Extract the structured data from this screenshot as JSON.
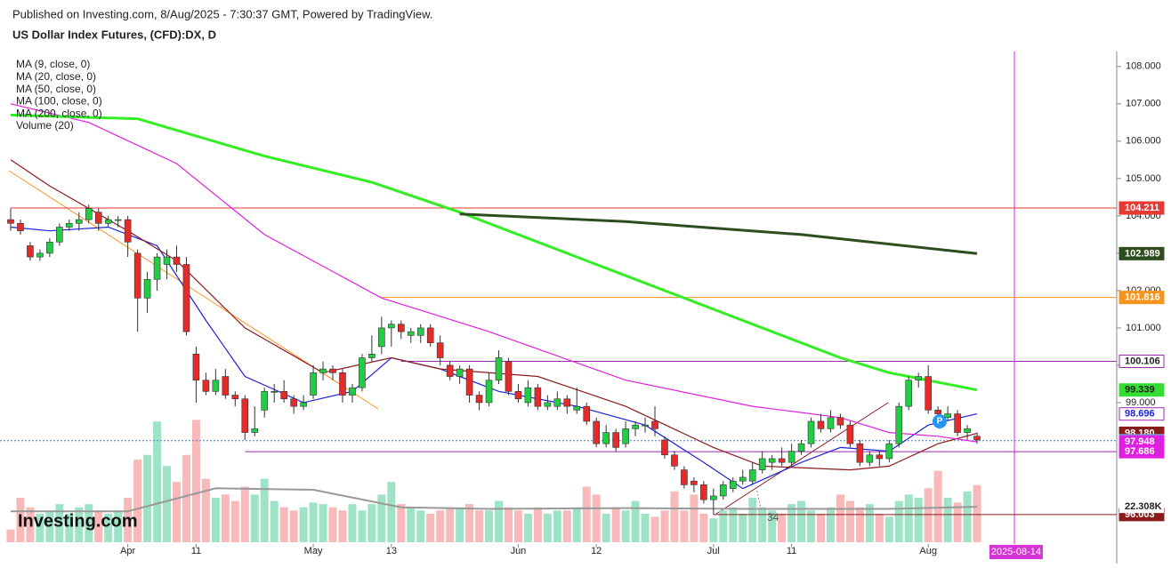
{
  "header": {
    "published": "Published on Investing.com, 8/Aug/2025 - 7:30:37 GMT, Powered by TradingView.",
    "symbol": "US Dollar Index Futures, (CFD):DX, D"
  },
  "logo": "Investing.com",
  "annotation": "34",
  "badge": "P",
  "chart_data": {
    "type": "candlestick",
    "ylim": [
      95.5,
      108.4
    ],
    "yticks": [
      {
        "value": 108,
        "label": "108.000"
      },
      {
        "value": 107,
        "label": "107.000"
      },
      {
        "value": 106,
        "label": "106.000"
      },
      {
        "value": 105,
        "label": "105.000"
      },
      {
        "value": 104,
        "label": "104.000"
      },
      {
        "value": 103,
        "label": "103.000"
      },
      {
        "value": 102,
        "label": "102.000"
      },
      {
        "value": 101,
        "label": "101.000"
      },
      {
        "value": 100,
        "label": "100.000"
      },
      {
        "value": 99,
        "label": "99.000"
      }
    ],
    "xticks": [
      {
        "value": 12,
        "label": "Apr"
      },
      {
        "value": 19,
        "label": "11"
      },
      {
        "value": 31,
        "label": "May"
      },
      {
        "value": 39,
        "label": "13"
      },
      {
        "value": 52,
        "label": "Jun"
      },
      {
        "value": 60,
        "label": "12"
      },
      {
        "value": 72,
        "label": "Jul"
      },
      {
        "value": 80,
        "label": "11"
      },
      {
        "value": 94,
        "label": "Aug"
      }
    ],
    "cursor_date": {
      "value": 103,
      "label": "2025-08-14"
    },
    "candles": [
      [
        103.9,
        104.2,
        103.6,
        103.8
      ],
      [
        103.8,
        103.9,
        103.5,
        103.6
      ],
      [
        103.2,
        103.3,
        102.8,
        102.9
      ],
      [
        102.9,
        103.1,
        102.8,
        103.0
      ],
      [
        103.0,
        103.4,
        102.9,
        103.3
      ],
      [
        103.3,
        103.8,
        103.2,
        103.7
      ],
      [
        103.7,
        103.9,
        103.6,
        103.8
      ],
      [
        103.8,
        104.1,
        103.6,
        103.9
      ],
      [
        103.9,
        104.3,
        103.8,
        104.2
      ],
      [
        104.1,
        104.2,
        103.6,
        103.8
      ],
      [
        103.8,
        104.0,
        103.7,
        103.9
      ],
      [
        103.9,
        104.0,
        103.7,
        103.9
      ],
      [
        103.9,
        104.0,
        102.9,
        103.3
      ],
      [
        103.0,
        103.1,
        100.9,
        101.8
      ],
      [
        101.8,
        102.5,
        101.4,
        102.3
      ],
      [
        102.3,
        103.0,
        102.0,
        102.9
      ],
      [
        102.7,
        103.1,
        102.3,
        102.9
      ],
      [
        102.9,
        103.2,
        102.5,
        102.7
      ],
      [
        102.7,
        102.9,
        100.8,
        100.9
      ],
      [
        100.3,
        100.5,
        99.0,
        99.6
      ],
      [
        99.6,
        99.8,
        99.2,
        99.3
      ],
      [
        99.3,
        99.9,
        99.2,
        99.6
      ],
      [
        99.7,
        99.9,
        99.1,
        99.2
      ],
      [
        99.2,
        99.3,
        98.9,
        99.1
      ],
      [
        99.1,
        99.2,
        98.0,
        98.2
      ],
      [
        98.2,
        98.9,
        98.1,
        98.3
      ],
      [
        98.8,
        99.4,
        98.6,
        99.3
      ],
      [
        99.3,
        99.5,
        99.0,
        99.3
      ],
      [
        99.3,
        99.6,
        99.0,
        99.1
      ],
      [
        99.1,
        99.2,
        98.7,
        98.9
      ],
      [
        98.9,
        99.2,
        98.8,
        99.0
      ],
      [
        99.2,
        100.0,
        99.1,
        99.8
      ],
      [
        99.8,
        100.1,
        99.6,
        99.9
      ],
      [
        99.9,
        100.0,
        99.6,
        99.8
      ],
      [
        99.8,
        99.9,
        99.0,
        99.2
      ],
      [
        99.2,
        99.5,
        99.0,
        99.4
      ],
      [
        99.4,
        100.3,
        99.3,
        100.2
      ],
      [
        100.2,
        100.8,
        100.1,
        100.3
      ],
      [
        100.5,
        101.3,
        100.3,
        101.0
      ],
      [
        101.0,
        101.2,
        100.5,
        101.1
      ],
      [
        101.1,
        101.2,
        100.7,
        100.9
      ],
      [
        100.8,
        101.0,
        100.6,
        100.9
      ],
      [
        100.8,
        101.1,
        100.6,
        101.0
      ],
      [
        101.0,
        101.1,
        100.5,
        100.6
      ],
      [
        100.6,
        100.8,
        100.0,
        100.2
      ],
      [
        100.0,
        100.1,
        99.6,
        99.7
      ],
      [
        99.7,
        100.0,
        99.5,
        99.9
      ],
      [
        99.9,
        100.0,
        99.0,
        99.2
      ],
      [
        99.2,
        99.3,
        98.8,
        99.0
      ],
      [
        99.0,
        99.8,
        98.9,
        99.6
      ],
      [
        99.6,
        100.4,
        99.5,
        100.2
      ],
      [
        100.1,
        100.2,
        99.2,
        99.3
      ],
      [
        99.3,
        99.5,
        99.0,
        99.1
      ],
      [
        99.0,
        99.6,
        98.9,
        99.4
      ],
      [
        99.4,
        99.5,
        98.8,
        98.9
      ],
      [
        98.9,
        99.2,
        98.8,
        99.0
      ],
      [
        98.9,
        99.3,
        98.8,
        99.1
      ],
      [
        99.1,
        99.2,
        98.7,
        98.9
      ],
      [
        98.8,
        99.4,
        98.7,
        98.9
      ],
      [
        98.9,
        99.0,
        98.4,
        98.5
      ],
      [
        98.5,
        98.6,
        97.8,
        97.9
      ],
      [
        97.9,
        98.4,
        97.8,
        98.2
      ],
      [
        98.2,
        98.3,
        97.7,
        97.8
      ],
      [
        97.9,
        98.5,
        97.8,
        98.3
      ],
      [
        98.3,
        98.5,
        98.1,
        98.4
      ],
      [
        98.4,
        98.6,
        98.2,
        98.4
      ],
      [
        98.5,
        98.9,
        98.1,
        98.3
      ],
      [
        98.0,
        98.1,
        97.5,
        97.6
      ],
      [
        97.6,
        97.7,
        97.2,
        97.3
      ],
      [
        97.2,
        97.3,
        96.7,
        96.8
      ],
      [
        96.9,
        97.0,
        96.6,
        96.8
      ],
      [
        96.8,
        96.9,
        96.3,
        96.4
      ],
      [
        96.4,
        96.7,
        96.0,
        96.5
      ],
      [
        96.5,
        96.9,
        96.4,
        96.8
      ],
      [
        96.7,
        97.0,
        96.6,
        96.9
      ],
      [
        96.9,
        97.2,
        96.8,
        97.0
      ],
      [
        96.9,
        97.4,
        96.8,
        97.2
      ],
      [
        97.2,
        97.7,
        97.1,
        97.5
      ],
      [
        97.4,
        97.6,
        97.2,
        97.5
      ],
      [
        97.5,
        97.8,
        97.3,
        97.4
      ],
      [
        97.4,
        97.9,
        97.3,
        97.7
      ],
      [
        97.7,
        98.0,
        97.6,
        97.9
      ],
      [
        97.9,
        98.6,
        97.8,
        98.5
      ],
      [
        98.5,
        98.7,
        98.2,
        98.3
      ],
      [
        98.3,
        98.8,
        98.2,
        98.6
      ],
      [
        98.6,
        98.7,
        98.3,
        98.4
      ],
      [
        98.4,
        98.5,
        97.8,
        97.9
      ],
      [
        97.9,
        98.0,
        97.3,
        97.4
      ],
      [
        97.4,
        97.7,
        97.3,
        97.6
      ],
      [
        97.6,
        97.7,
        97.3,
        97.5
      ],
      [
        97.5,
        98.0,
        97.4,
        97.9
      ],
      [
        97.9,
        99.0,
        97.8,
        98.9
      ],
      [
        98.9,
        99.7,
        98.8,
        99.6
      ],
      [
        99.6,
        99.8,
        99.4,
        99.7
      ],
      [
        99.7,
        100.0,
        98.7,
        98.8
      ],
      [
        98.8,
        98.9,
        98.5,
        98.7
      ],
      [
        98.6,
        98.9,
        98.5,
        98.7
      ],
      [
        98.7,
        98.8,
        98.1,
        98.2
      ],
      [
        98.2,
        98.4,
        98.0,
        98.3
      ],
      [
        98.1,
        98.2,
        97.9,
        98.0
      ]
    ],
    "volume_lim": [
      0,
      75
    ],
    "volume": [
      8,
      28,
      22,
      18,
      20,
      24,
      18,
      22,
      24,
      20,
      18,
      20,
      28,
      52,
      55,
      76,
      48,
      38,
      55,
      77,
      40,
      28,
      30,
      26,
      35,
      30,
      40,
      26,
      22,
      20,
      22,
      25,
      24,
      22,
      20,
      24,
      20,
      24,
      30,
      38,
      24,
      22,
      20,
      18,
      20,
      22,
      22,
      24,
      20,
      20,
      26,
      22,
      20,
      18,
      22,
      18,
      20,
      20,
      22,
      35,
      30,
      18,
      22,
      20,
      26,
      18,
      16,
      20,
      32,
      20,
      30,
      18,
      15,
      20,
      22,
      18,
      28,
      22,
      20,
      18,
      24,
      26,
      20,
      18,
      22,
      30,
      26,
      22,
      24,
      18,
      16,
      26,
      30,
      28,
      34,
      45,
      28,
      25,
      32,
      36
    ],
    "series": [
      {
        "name": "MA (9, close, 0)",
        "color": "#1e22d8",
        "x": [
          0,
          4,
          10,
          15,
          20,
          24,
          30,
          35,
          39,
          44,
          50,
          58,
          65,
          71,
          75,
          81,
          85,
          90,
          94,
          99
        ],
        "values": [
          103.7,
          103.6,
          103.7,
          103.2,
          101.2,
          99.7,
          99.0,
          99.3,
          100.2,
          99.9,
          99.3,
          98.9,
          98.4,
          97.4,
          96.7,
          97.4,
          97.8,
          97.7,
          98.4,
          98.7
        ]
      },
      {
        "name": "MA (20, close, 0)",
        "color": "#8b1a1a",
        "x": [
          0,
          4,
          12,
          17,
          24,
          32,
          39,
          44,
          54,
          63,
          72,
          77,
          86,
          90,
          95,
          99
        ],
        "values": [
          105.5,
          104.8,
          103.6,
          102.8,
          101.0,
          99.8,
          100.2,
          99.9,
          99.7,
          98.9,
          97.8,
          97.3,
          97.2,
          97.3,
          97.9,
          98.18
        ]
      },
      {
        "name": "MA (50, close, 0)",
        "color": "#e020e0",
        "x": [
          0,
          8,
          17,
          26,
          38,
          49,
          63,
          76,
          85,
          90,
          95,
          99
        ],
        "values": [
          107.0,
          106.5,
          105.4,
          103.5,
          101.8,
          100.9,
          99.6,
          98.9,
          98.6,
          98.2,
          98.1,
          97.948
        ]
      },
      {
        "name": "MA (100, close, 0)",
        "color": "#33ee22",
        "x": [
          0,
          13,
          26,
          37,
          46,
          58,
          72,
          85,
          90,
          99
        ],
        "values": [
          106.7,
          106.6,
          105.6,
          104.9,
          104.1,
          102.9,
          101.5,
          100.2,
          99.8,
          99.339
        ]
      },
      {
        "name": "MA (200, close, 0)",
        "color": "#2e4d1f",
        "x": [
          46,
          63,
          81,
          99
        ],
        "values": [
          104.05,
          103.85,
          103.5,
          102.989
        ]
      },
      {
        "name": "Volume (20)",
        "color": "#999999",
        "axis": "volume",
        "x": [
          0,
          12,
          21,
          31,
          40,
          49,
          63,
          76,
          90,
          99
        ],
        "values": [
          19.5,
          19.5,
          34,
          33,
          22,
          21,
          21.5,
          21,
          21,
          22.308
        ]
      }
    ],
    "levels": [
      {
        "value": 104.211,
        "color": "#e53935",
        "from": 0
      },
      {
        "value": 101.816,
        "color": "#f7941d",
        "from": 38
      },
      {
        "value": 100.106,
        "color": "#9c27b0",
        "from": 40
      },
      {
        "value": 97.686,
        "color": "#9c27b0",
        "from": 24
      },
      {
        "value": 96.003,
        "color": "#8b1a1a",
        "from": 72
      }
    ],
    "last_price": 97.98,
    "price_labels": [
      {
        "value": 104.211,
        "label": "104.211",
        "bg": "#e53935",
        "fg": "#ffffff"
      },
      {
        "value": 102.989,
        "label": "102.989",
        "bg": "#2e4d1f",
        "fg": "#ffffff"
      },
      {
        "value": 101.816,
        "label": "101.816",
        "bg": "#f7941d",
        "fg": "#ffffff"
      },
      {
        "value": 100.106,
        "label": "100.106",
        "bg": "#ffffff",
        "fg": "#222222"
      },
      {
        "value": 99.339,
        "label": "99.339",
        "bg": "#33dd33",
        "fg": "#222222"
      },
      {
        "value": 98.696,
        "label": "98.696",
        "bg": "#ffffff",
        "fg": "#1e22d8"
      },
      {
        "value": 98.18,
        "label": "98.180",
        "bg": "#8b1a1a",
        "fg": "#ffffff"
      },
      {
        "value": 97.98,
        "label": "97.980",
        "bg": "#6fa8dc",
        "fg": "#ffffff"
      },
      {
        "value": 97.948,
        "label": "97.948",
        "bg": "#e020e0",
        "fg": "#ffffff"
      },
      {
        "value": 97.686,
        "label": "97.686",
        "bg": "#e020e0",
        "fg": "#ffffff"
      },
      {
        "value": 96.003,
        "label": "96.003",
        "bg": "#8b1a1a",
        "fg": "#ffffff"
      }
    ],
    "volume_label": {
      "value": 22.308,
      "label": "22.308K"
    }
  }
}
